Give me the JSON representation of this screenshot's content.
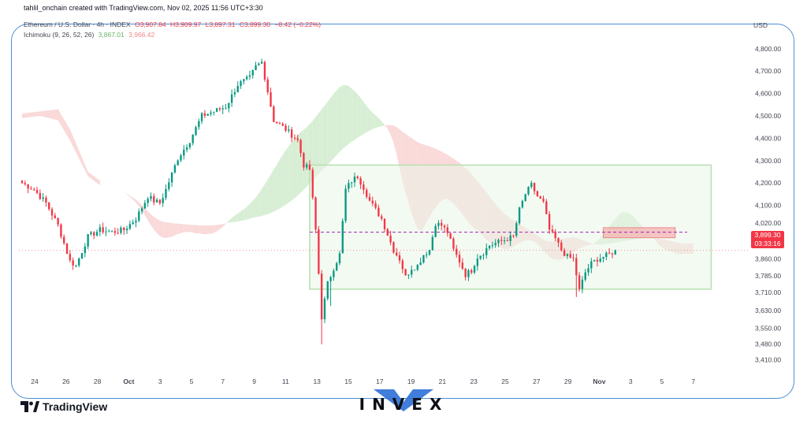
{
  "header": {
    "created": "tahlil_onchain created with TradingView.com, Nov 02, 2025 11:56 UTC+3:30",
    "symbol": "Ethereum / U.S. Dollar · 4h · INDEX",
    "o": "O3,907.84",
    "h": "H3,909.97",
    "l": "L3,897.31",
    "c": "C3,899.30",
    "change": "−8.42 (−0.22%)",
    "ichimoku_name": "Ichimoku (9, 26, 52, 26)",
    "ichimoku_v1": "3,867.01",
    "ichimoku_v2": "3,966.42"
  },
  "currency": "USD",
  "price_tag": {
    "price": "3,899.30",
    "countdown": "03:33:16"
  },
  "footer": {
    "tradingview": "TradingView",
    "brand": "INVEX"
  },
  "colors": {
    "up": "#089981",
    "down": "#f23645",
    "range_box": "#b5e0b0",
    "range_fill": "#eaf6e8",
    "cloud_bull": "#d7eed4",
    "cloud_bear": "#fad9d9",
    "frame": "#4a8fd6",
    "brand_accent": "#2c6fd6"
  },
  "chart_data": {
    "type": "candlestick",
    "title": "Ethereum / U.S. Dollar · 4h · INDEX",
    "x_labels": [
      "24",
      "26",
      "28",
      "Oct",
      "3",
      "5",
      "7",
      "9",
      "11",
      "13",
      "15",
      "17",
      "19",
      "21",
      "23",
      "25",
      "27",
      "29",
      "Nov",
      "3",
      "5",
      "7"
    ],
    "y_ticks": [
      "4,800.00",
      "4,700.00",
      "4,600.00",
      "4,500.00",
      "4,400.00",
      "4,300.00",
      "4,200.00",
      "4,100.00",
      "4,020.00",
      "3,940.00",
      "3,860.00",
      "3,785.00",
      "3,710.00",
      "3,630.00",
      "3,550.00",
      "3,480.00",
      "3,410.00"
    ],
    "y_tick_values": [
      4800,
      4700,
      4600,
      4500,
      4400,
      4300,
      4200,
      4100,
      4020,
      3940,
      3860,
      3785,
      3710,
      3630,
      3550,
      3480,
      3410
    ],
    "ylim": [
      3390,
      4870
    ],
    "close_path": [
      [
        0,
        4200
      ],
      [
        4,
        4170
      ],
      [
        8,
        4110
      ],
      [
        12,
        4010
      ],
      [
        16,
        3850
      ],
      [
        18,
        3830
      ],
      [
        22,
        3960
      ],
      [
        26,
        3990
      ],
      [
        30,
        3980
      ],
      [
        34,
        3990
      ],
      [
        38,
        4040
      ],
      [
        42,
        4140
      ],
      [
        44,
        4120
      ],
      [
        46,
        4110
      ],
      [
        48,
        4170
      ],
      [
        52,
        4310
      ],
      [
        56,
        4390
      ],
      [
        60,
        4500
      ],
      [
        64,
        4520
      ],
      [
        68,
        4540
      ],
      [
        72,
        4640
      ],
      [
        76,
        4670
      ],
      [
        78,
        4720
      ],
      [
        80,
        4740
      ],
      [
        82,
        4610
      ],
      [
        84,
        4480
      ],
      [
        88,
        4440
      ],
      [
        92,
        4390
      ],
      [
        94,
        4280
      ],
      [
        96,
        4260
      ],
      [
        98,
        3990
      ],
      [
        100,
        3600
      ],
      [
        102,
        3750
      ],
      [
        104,
        3820
      ],
      [
        106,
        3880
      ],
      [
        108,
        4170
      ],
      [
        110,
        4210
      ],
      [
        112,
        4230
      ],
      [
        114,
        4180
      ],
      [
        116,
        4120
      ],
      [
        118,
        4080
      ],
      [
        120,
        4040
      ],
      [
        122,
        3970
      ],
      [
        124,
        3900
      ],
      [
        126,
        3860
      ],
      [
        128,
        3780
      ],
      [
        130,
        3820
      ],
      [
        132,
        3830
      ],
      [
        134,
        3880
      ],
      [
        136,
        3900
      ],
      [
        138,
        4020
      ],
      [
        140,
        4010
      ],
      [
        142,
        3980
      ],
      [
        144,
        3900
      ],
      [
        146,
        3850
      ],
      [
        148,
        3790
      ],
      [
        150,
        3810
      ],
      [
        152,
        3870
      ],
      [
        154,
        3890
      ],
      [
        156,
        3920
      ],
      [
        158,
        3930
      ],
      [
        160,
        3940
      ],
      [
        162,
        3950
      ],
      [
        164,
        3960
      ],
      [
        166,
        4080
      ],
      [
        168,
        4150
      ],
      [
        170,
        4190
      ],
      [
        172,
        4140
      ],
      [
        174,
        4110
      ],
      [
        176,
        3990
      ],
      [
        178,
        3950
      ],
      [
        180,
        3900
      ],
      [
        182,
        3870
      ],
      [
        184,
        3860
      ],
      [
        186,
        3720
      ],
      [
        188,
        3800
      ],
      [
        190,
        3840
      ],
      [
        192,
        3860
      ],
      [
        194,
        3870
      ],
      [
        196,
        3880
      ],
      [
        198,
        3899.3
      ]
    ],
    "range_box": {
      "x0": 96,
      "x1": 230,
      "y_top": 4280,
      "y_bottom": 3725
    },
    "resistance_box": {
      "x0": 194,
      "x1": 218,
      "y_top": 4000,
      "y_bottom": 3955
    },
    "dashed_levels": [
      3980,
      3899.3
    ],
    "last_price": 3899.3
  }
}
